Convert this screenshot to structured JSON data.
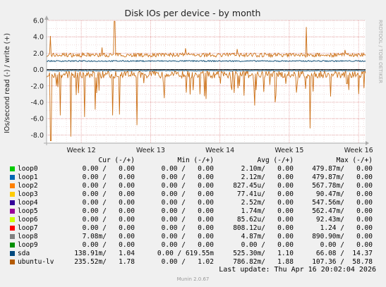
{
  "chart_data": {
    "type": "line",
    "title": "Disk IOs per device - by month",
    "ylabel": "IOs/second read (-) / write (+)",
    "side_text": "RRDTOOL / TOBI OETIKER",
    "ylim": [
      -9,
      6
    ],
    "yticks": [
      -8.0,
      -6.0,
      -4.0,
      -2.0,
      0.0,
      2.0,
      4.0,
      6.0
    ],
    "ytick_labels": [
      "-8.0",
      "-6.0",
      "-4.0",
      "-2.0",
      "0.0",
      "2.0",
      "4.0",
      "6.0"
    ],
    "xlim_weeks": [
      11.5,
      16.1
    ],
    "xticks": [
      12,
      13,
      14,
      15,
      16
    ],
    "xtick_labels": [
      "Week 12",
      "Week 13",
      "Week 14",
      "Week 15",
      "Week 16"
    ],
    "grid": true,
    "series": [
      {
        "name": "ubuntu-lv",
        "color": "#cc7016",
        "write_baseline": 1.78,
        "write_spikes": [
          [
            11.55,
            4.1
          ],
          [
            12.3,
            2.7
          ],
          [
            12.48,
            5.9
          ],
          [
            13.5,
            2.6
          ],
          [
            14.25,
            2.5
          ],
          [
            15.25,
            5.2
          ],
          [
            15.8,
            2.4
          ]
        ],
        "read_spikes": [
          [
            11.56,
            -8.7
          ],
          [
            11.7,
            -5.6
          ],
          [
            11.85,
            -8.2
          ],
          [
            12.05,
            -5.8
          ],
          [
            12.2,
            -4.9
          ],
          [
            12.45,
            -5.6
          ],
          [
            12.55,
            -5.5
          ],
          [
            12.8,
            -6.8
          ],
          [
            13.2,
            -3.5
          ],
          [
            13.8,
            -3.6
          ],
          [
            14.5,
            -4.4
          ],
          [
            14.8,
            -4.0
          ],
          [
            15.3,
            -7.2
          ],
          [
            15.6,
            -3.3
          ],
          [
            16.0,
            -3.0
          ]
        ]
      },
      {
        "name": "sda",
        "color": "#00456f",
        "write_baseline": 1.04,
        "read_baseline": -0.14
      }
    ]
  },
  "legend": {
    "header": {
      "cur": "Cur (-/+)",
      "min": "Min (-/+)",
      "avg": "Avg (-/+)",
      "max": "Max (-/+)"
    },
    "rows": [
      {
        "name": "loop0",
        "color": "#00cc00",
        "cur": "0.00 /   0.00",
        "min": "0.00 /   0.00",
        "avg": "2.10m/   0.00",
        "max": "479.87m/   0.00"
      },
      {
        "name": "loop1",
        "color": "#0066b3",
        "cur": "0.00 /   0.00",
        "min": "0.00 /   0.00",
        "avg": "2.12m/   0.00",
        "max": "479.87m/   0.00"
      },
      {
        "name": "loop2",
        "color": "#ff8000",
        "cur": "0.00 /   0.00",
        "min": "0.00 /   0.00",
        "avg": "827.45u/   0.00",
        "max": "567.78m/   0.00"
      },
      {
        "name": "loop3",
        "color": "#ffcc00",
        "cur": "0.00 /   0.00",
        "min": "0.00 /   0.00",
        "avg": "77.41u/   0.00",
        "max": "90.47m/   0.00"
      },
      {
        "name": "loop4",
        "color": "#330099",
        "cur": "0.00 /   0.00",
        "min": "0.00 /   0.00",
        "avg": "2.52m/   0.00",
        "max": "547.56m/   0.00"
      },
      {
        "name": "loop5",
        "color": "#990099",
        "cur": "0.00 /   0.00",
        "min": "0.00 /   0.00",
        "avg": "1.74m/   0.00",
        "max": "562.47m/   0.00"
      },
      {
        "name": "loop6",
        "color": "#ccff00",
        "cur": "0.00 /   0.00",
        "min": "0.00 /   0.00",
        "avg": "85.62u/   0.00",
        "max": "92.43m/   0.00"
      },
      {
        "name": "loop7",
        "color": "#ff0000",
        "cur": "0.00 /   0.00",
        "min": "0.00 /   0.00",
        "avg": "808.12u/   0.00",
        "max": "1.24 /   0.00"
      },
      {
        "name": "loop8",
        "color": "#808080",
        "cur": "7.08m/   0.00",
        "min": "0.00 /   0.00",
        "avg": "4.87m/   0.00",
        "max": "890.90m/   0.00"
      },
      {
        "name": "loop9",
        "color": "#008f00",
        "cur": "0.00 /   0.00",
        "min": "0.00 /   0.00",
        "avg": "0.00 /   0.00",
        "max": "0.00 /   0.00"
      },
      {
        "name": "sda",
        "color": "#00487d",
        "cur": "138.91m/   1.04",
        "min": "0.00 / 619.55m",
        "avg": "525.30m/   1.10",
        "max": "66.08 /  14.37"
      },
      {
        "name": "ubuntu-lv",
        "color": "#b35a00",
        "cur": "235.52m/   1.78",
        "min": "0.00 /   1.02",
        "avg": "786.82m/   1.88",
        "max": "107.36 /  58.78"
      }
    ]
  },
  "footer": {
    "last_update": "Last update: Thu Apr 16 20:02:04 2026",
    "version": "Munin 2.0.67"
  }
}
